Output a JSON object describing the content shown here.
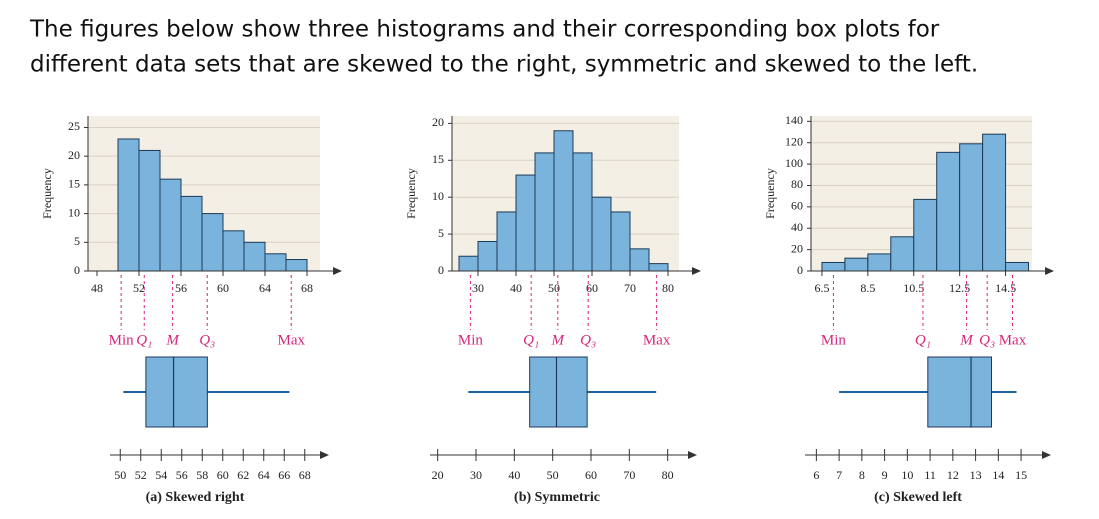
{
  "intro": [
    "The figures below show three histograms and their corresponding box plots for",
    "different data sets that are skewed to the right, symmetric and skewed to the left."
  ],
  "chart_data": [
    {
      "type": "histogram",
      "caption": "(a) Skewed right",
      "ylabel": "Frequency",
      "bins": [
        50,
        52,
        54,
        56,
        58,
        60,
        62,
        64,
        66,
        68
      ],
      "values": [
        23,
        21,
        16,
        13,
        10,
        7,
        5,
        3,
        2
      ],
      "color": "#7ab4dc",
      "xlim": [
        46,
        70
      ],
      "xticks": [
        48,
        52,
        56,
        60,
        64,
        68
      ],
      "ylim": [
        0,
        27
      ],
      "yticks": [
        0,
        5,
        10,
        15,
        20,
        25
      ],
      "grid": true,
      "box": {
        "min": 50.3,
        "q1": 52.5,
        "median": 55.2,
        "q3": 58.5,
        "max": 66.5
      },
      "box_labels": [
        "Min",
        "Q₁",
        "M",
        "Q₃",
        "Max"
      ],
      "box_xlim": [
        49,
        69
      ],
      "box_xticks": [
        50,
        52,
        54,
        56,
        58,
        60,
        62,
        64,
        66,
        68
      ]
    },
    {
      "type": "histogram",
      "caption": "(b) Symmetric",
      "ylabel": "Frequency",
      "bins": [
        25,
        30,
        35,
        40,
        45,
        50,
        55,
        60,
        65,
        70,
        75,
        80
      ],
      "values": [
        2,
        4,
        8,
        13,
        16,
        19,
        16,
        10,
        8,
        3,
        1
      ],
      "color": "#7ab4dc",
      "xlim": [
        20,
        85
      ],
      "xticks": [
        30,
        40,
        50,
        60,
        70,
        80
      ],
      "ylim": [
        0,
        21
      ],
      "yticks": [
        0,
        5,
        10,
        15,
        20
      ],
      "grid": true,
      "box": {
        "min": 28,
        "q1": 44,
        "median": 51,
        "q3": 59,
        "max": 77
      },
      "box_labels": [
        "Min",
        "Q₁",
        "M",
        "Q₃",
        "Max"
      ],
      "box_xlim": [
        18,
        84
      ],
      "box_xticks": [
        20,
        30,
        40,
        50,
        60,
        70,
        80
      ]
    },
    {
      "type": "histogram",
      "caption": "(c) Skewed left",
      "ylabel": "Frequency",
      "bins": [
        6.5,
        7.5,
        8.5,
        9.5,
        10.5,
        11.5,
        12.5,
        13.5,
        14.5,
        15.5
      ],
      "values": [
        8,
        12,
        16,
        32,
        67,
        111,
        119,
        128,
        8
      ],
      "color": "#7ab4dc",
      "xlim": [
        5.5,
        16
      ],
      "xticks": [
        6.5,
        8.5,
        10.5,
        12.5,
        14.5
      ],
      "ylim": [
        0,
        145
      ],
      "yticks": [
        0,
        20,
        40,
        60,
        80,
        100,
        120,
        140
      ],
      "grid": true,
      "box": {
        "min": 7,
        "q1": 10.9,
        "median": 12.8,
        "q3": 13.7,
        "max": 14.8
      },
      "box_labels": [
        "Min",
        "Q₁",
        "M",
        "Q₃",
        "Max"
      ],
      "box_xlim": [
        5.5,
        15.7
      ],
      "box_xticks": [
        6,
        7,
        8,
        9,
        10,
        11,
        12,
        13,
        14,
        15
      ]
    }
  ]
}
